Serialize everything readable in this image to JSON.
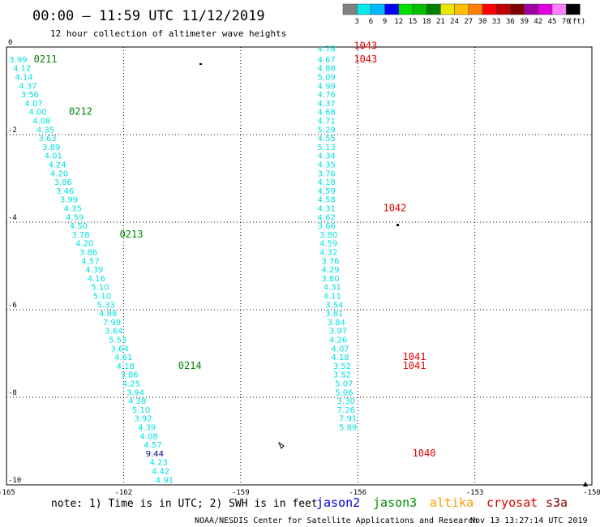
{
  "header": {
    "title": "00:00 – 11:59 UTC 11/12/2019",
    "subtitle": "12 hour collection of altimeter wave heights"
  },
  "colorbar": {
    "labels": [
      "3",
      "6",
      "9",
      "12",
      "15",
      "18",
      "21",
      "24",
      "27",
      "30",
      "33",
      "36",
      "39",
      "42",
      "45",
      "70"
    ],
    "unit": "(ft)",
    "colors": [
      "#808080",
      "#00e8e8",
      "#00b8ff",
      "#0000ff",
      "#00e000",
      "#00c000",
      "#008000",
      "#e8e800",
      "#ffc000",
      "#ff8000",
      "#ff0000",
      "#c00000",
      "#800000",
      "#a000a0",
      "#e000e0",
      "#ff80ff",
      "#000000"
    ]
  },
  "footer": {
    "note": "note: 1) Time is in UTC; 2) SWH is in feet",
    "satellites": [
      {
        "name": "jason2",
        "color": "#0000e0"
      },
      {
        "name": "jason3",
        "color": "#009000"
      },
      {
        "name": "altika",
        "color": "#ff9900"
      },
      {
        "name": "cryosat",
        "color": "#e00000"
      },
      {
        "name": "s3a",
        "color": "#800000"
      }
    ],
    "credit": "NOAA/NESDIS Center for Satellite Applications and Research",
    "timestamp": "Nov 13 13:27:14 UTC 2019"
  },
  "chart_data": {
    "type": "scatter",
    "title": "00:00 – 11:59 UTC 11/12/2019",
    "xlim": [
      -165,
      -150
    ],
    "ylim": [
      -10,
      0
    ],
    "x_ticks": [
      "-165",
      "-162",
      "-159",
      "-156",
      "-153",
      "-150"
    ],
    "y_ticks": [
      "0",
      "-2",
      "-4",
      "-6",
      "-8",
      "-10"
    ],
    "grid": true,
    "series": [
      {
        "name": "jason3",
        "color": "#00e0e0",
        "points": [
          {
            "x": -164.7,
            "y": -0.35,
            "v": "3.99"
          },
          {
            "x": -164.6,
            "y": -0.55,
            "v": "4.12"
          },
          {
            "x": -164.55,
            "y": -0.75,
            "v": "4.14"
          },
          {
            "x": -164.45,
            "y": -0.95,
            "v": "4.37"
          },
          {
            "x": -164.4,
            "y": -1.15,
            "v": "3.56"
          },
          {
            "x": -164.3,
            "y": -1.35,
            "v": "4.07"
          },
          {
            "x": -164.2,
            "y": -1.55,
            "v": "4.00"
          },
          {
            "x": -164.1,
            "y": -1.75,
            "v": "4.08"
          },
          {
            "x": -164.0,
            "y": -1.95,
            "v": "4.35"
          },
          {
            "x": -163.95,
            "y": -2.15,
            "v": "3.63"
          },
          {
            "x": -163.85,
            "y": -2.35,
            "v": "3.89"
          },
          {
            "x": -163.8,
            "y": -2.55,
            "v": "4.01"
          },
          {
            "x": -163.7,
            "y": -2.75,
            "v": "4.24"
          },
          {
            "x": -163.65,
            "y": -2.95,
            "v": "4.20"
          },
          {
            "x": -163.55,
            "y": -3.15,
            "v": "3.86"
          },
          {
            "x": -163.5,
            "y": -3.35,
            "v": "3.46"
          },
          {
            "x": -163.4,
            "y": -3.55,
            "v": "3.99"
          },
          {
            "x": -163.3,
            "y": -3.75,
            "v": "4.35"
          },
          {
            "x": -163.25,
            "y": -3.95,
            "v": "4.59"
          },
          {
            "x": -163.15,
            "y": -4.15,
            "v": "4.50"
          },
          {
            "x": -163.1,
            "y": -4.35,
            "v": "3.78"
          },
          {
            "x": -163.0,
            "y": -4.55,
            "v": "4.20"
          },
          {
            "x": -162.9,
            "y": -4.75,
            "v": "3.86"
          },
          {
            "x": -162.85,
            "y": -4.95,
            "v": "4.57"
          },
          {
            "x": -162.75,
            "y": -5.15,
            "v": "4.39"
          },
          {
            "x": -162.7,
            "y": -5.35,
            "v": "4.16"
          },
          {
            "x": -162.6,
            "y": -5.55,
            "v": "5.10"
          },
          {
            "x": -162.55,
            "y": -5.75,
            "v": "5.10"
          },
          {
            "x": -162.45,
            "y": -5.95,
            "v": "5.33"
          },
          {
            "x": -162.4,
            "y": -6.15,
            "v": "4.88"
          },
          {
            "x": -162.3,
            "y": -6.35,
            "v": "7.99"
          },
          {
            "x": -162.25,
            "y": -6.55,
            "v": "3.64"
          },
          {
            "x": -162.15,
            "y": -6.75,
            "v": "5.53"
          },
          {
            "x": -162.1,
            "y": -6.95,
            "v": "3.64"
          },
          {
            "x": -162.0,
            "y": -7.15,
            "v": "4.61"
          },
          {
            "x": -161.95,
            "y": -7.35,
            "v": "4.18"
          },
          {
            "x": -161.85,
            "y": -7.55,
            "v": "3.86"
          },
          {
            "x": -161.8,
            "y": -7.75,
            "v": "4.25"
          },
          {
            "x": -161.7,
            "y": -7.95,
            "v": "3.94"
          },
          {
            "x": -161.65,
            "y": -8.15,
            "v": "4.38"
          },
          {
            "x": -161.55,
            "y": -8.35,
            "v": "5.10"
          },
          {
            "x": -161.5,
            "y": -8.55,
            "v": "3.92"
          },
          {
            "x": -161.4,
            "y": -8.75,
            "v": "4.39"
          },
          {
            "x": -161.35,
            "y": -8.95,
            "v": "4.08"
          },
          {
            "x": -161.25,
            "y": -9.15,
            "v": "4.57"
          },
          {
            "x": -161.2,
            "y": -9.35,
            "v": "9.44"
          },
          {
            "x": -161.1,
            "y": -9.55,
            "v": "4.23"
          },
          {
            "x": -161.05,
            "y": -9.75,
            "v": "4.42"
          },
          {
            "x": -160.95,
            "y": -9.95,
            "v": "4.91"
          }
        ]
      },
      {
        "name": "cryosat",
        "color": "#00e0e0",
        "points": [
          {
            "x": -156.8,
            "y": -0.1,
            "v": "4.78"
          },
          {
            "x": -156.8,
            "y": -0.35,
            "v": "4.67"
          },
          {
            "x": -156.8,
            "y": -0.55,
            "v": "4.88"
          },
          {
            "x": -156.8,
            "y": -0.75,
            "v": "5.09"
          },
          {
            "x": -156.8,
            "y": -0.95,
            "v": "4.99"
          },
          {
            "x": -156.8,
            "y": -1.15,
            "v": "4.76"
          },
          {
            "x": -156.8,
            "y": -1.35,
            "v": "4.37"
          },
          {
            "x": -156.8,
            "y": -1.55,
            "v": "4.68"
          },
          {
            "x": -156.8,
            "y": -1.75,
            "v": "4.71"
          },
          {
            "x": -156.8,
            "y": -1.95,
            "v": "5.29"
          },
          {
            "x": -156.8,
            "y": -2.15,
            "v": "4.55"
          },
          {
            "x": -156.8,
            "y": -2.35,
            "v": "5.13"
          },
          {
            "x": -156.8,
            "y": -2.55,
            "v": "4.34"
          },
          {
            "x": -156.8,
            "y": -2.75,
            "v": "4.35"
          },
          {
            "x": -156.8,
            "y": -2.95,
            "v": "3.76"
          },
          {
            "x": -156.8,
            "y": -3.15,
            "v": "4.18"
          },
          {
            "x": -156.8,
            "y": -3.35,
            "v": "4.59"
          },
          {
            "x": -156.8,
            "y": -3.55,
            "v": "4.58"
          },
          {
            "x": -156.8,
            "y": -3.75,
            "v": "4.31"
          },
          {
            "x": -156.8,
            "y": -3.95,
            "v": "4.62"
          },
          {
            "x": -156.8,
            "y": -4.15,
            "v": "3.66"
          },
          {
            "x": -156.75,
            "y": -4.35,
            "v": "3.80"
          },
          {
            "x": -156.75,
            "y": -4.55,
            "v": "4.59"
          },
          {
            "x": -156.75,
            "y": -4.75,
            "v": "4.32"
          },
          {
            "x": -156.7,
            "y": -4.95,
            "v": "3.76"
          },
          {
            "x": -156.7,
            "y": -5.15,
            "v": "4.29"
          },
          {
            "x": -156.7,
            "y": -5.35,
            "v": "3.80"
          },
          {
            "x": -156.65,
            "y": -5.55,
            "v": "4.31"
          },
          {
            "x": -156.65,
            "y": -5.75,
            "v": "4.11"
          },
          {
            "x": -156.6,
            "y": -5.95,
            "v": "3.54"
          },
          {
            "x": -156.6,
            "y": -6.15,
            "v": "3.81"
          },
          {
            "x": -156.55,
            "y": -6.35,
            "v": "3.84"
          },
          {
            "x": -156.5,
            "y": -6.55,
            "v": "3.97"
          },
          {
            "x": -156.5,
            "y": -6.75,
            "v": "4.26"
          },
          {
            "x": -156.45,
            "y": -6.95,
            "v": "4.07"
          },
          {
            "x": -156.45,
            "y": -7.15,
            "v": "4.18"
          },
          {
            "x": -156.4,
            "y": -7.35,
            "v": "3.52"
          },
          {
            "x": -156.4,
            "y": -7.55,
            "v": "3.52"
          },
          {
            "x": -156.35,
            "y": -7.75,
            "v": "5.07"
          },
          {
            "x": -156.35,
            "y": -7.95,
            "v": "5.06"
          },
          {
            "x": -156.3,
            "y": -8.15,
            "v": "3.30"
          },
          {
            "x": -156.3,
            "y": -8.35,
            "v": "7.26"
          },
          {
            "x": -156.25,
            "y": -8.55,
            "v": "7.91"
          },
          {
            "x": -156.25,
            "y": -8.75,
            "v": "5.89"
          }
        ]
      }
    ],
    "time_labels": [
      {
        "x": -164.0,
        "y": -0.35,
        "v": "0211",
        "color": "#008000"
      },
      {
        "x": -163.1,
        "y": -1.55,
        "v": "0212",
        "color": "#008000"
      },
      {
        "x": -161.8,
        "y": -4.35,
        "v": "0213",
        "color": "#008000"
      },
      {
        "x": -160.3,
        "y": -7.35,
        "v": "0214",
        "color": "#008000"
      },
      {
        "x": -155.8,
        "y": -0.05,
        "v": "1043",
        "color": "#e00000"
      },
      {
        "x": -155.8,
        "y": -0.35,
        "v": "1043",
        "color": "#e00000"
      },
      {
        "x": -155.05,
        "y": -3.75,
        "v": "1042",
        "color": "#e00000"
      },
      {
        "x": -154.55,
        "y": -7.15,
        "v": "1041",
        "color": "#e00000"
      },
      {
        "x": -154.55,
        "y": -7.35,
        "v": "1041",
        "color": "#e00000"
      },
      {
        "x": -154.3,
        "y": -9.35,
        "v": "1040",
        "color": "#e00000"
      }
    ]
  }
}
